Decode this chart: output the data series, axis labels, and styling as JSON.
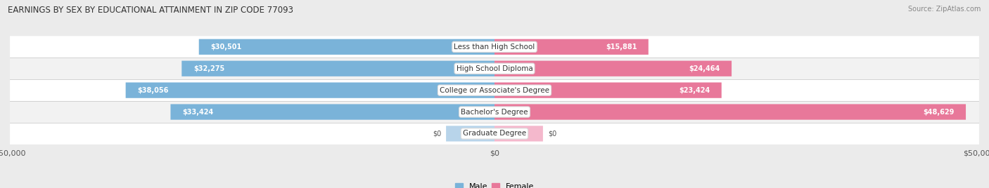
{
  "title": "EARNINGS BY SEX BY EDUCATIONAL ATTAINMENT IN ZIP CODE 77093",
  "source": "Source: ZipAtlas.com",
  "categories": [
    "Less than High School",
    "High School Diploma",
    "College or Associate's Degree",
    "Bachelor's Degree",
    "Graduate Degree"
  ],
  "male_values": [
    30501,
    32275,
    38056,
    33424,
    0
  ],
  "female_values": [
    15881,
    24464,
    23424,
    48629,
    0
  ],
  "male_color": "#7ab3d9",
  "female_color": "#e8789a",
  "male_color_light": "#b8d4ea",
  "female_color_light": "#f4b8cc",
  "max_value": 50000,
  "bg_color": "#ebebeb",
  "row_bg_color": "#ffffff",
  "row_alt_bg_color": "#f2f2f2",
  "legend_male": "Male",
  "legend_female": "Female"
}
